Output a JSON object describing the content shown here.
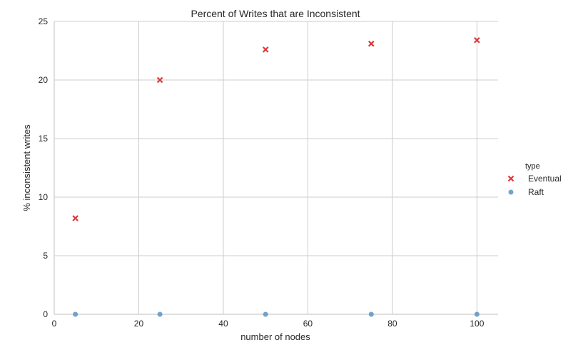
{
  "chart_data": {
    "type": "scatter",
    "title": "Percent of Writes that are Inconsistent",
    "xlabel": "number of nodes",
    "ylabel": "% inconsistent writes",
    "xlim": [
      0,
      105
    ],
    "ylim": [
      0,
      25
    ],
    "xticks": [
      0,
      20,
      40,
      60,
      80,
      100
    ],
    "yticks": [
      0,
      5,
      10,
      15,
      20,
      25
    ],
    "grid": true,
    "legend": {
      "title": "type",
      "placement": "right"
    },
    "series": [
      {
        "name": "Eventual",
        "marker": "x",
        "color": "#e0373b",
        "x": [
          5,
          25,
          50,
          75,
          100
        ],
        "y": [
          8.2,
          20.0,
          22.6,
          23.1,
          23.4
        ]
      },
      {
        "name": "Raft",
        "marker": "circle",
        "color": "#5b93c5",
        "x": [
          5,
          25,
          50,
          75,
          100
        ],
        "y": [
          0,
          0,
          0,
          0,
          0
        ]
      }
    ]
  }
}
